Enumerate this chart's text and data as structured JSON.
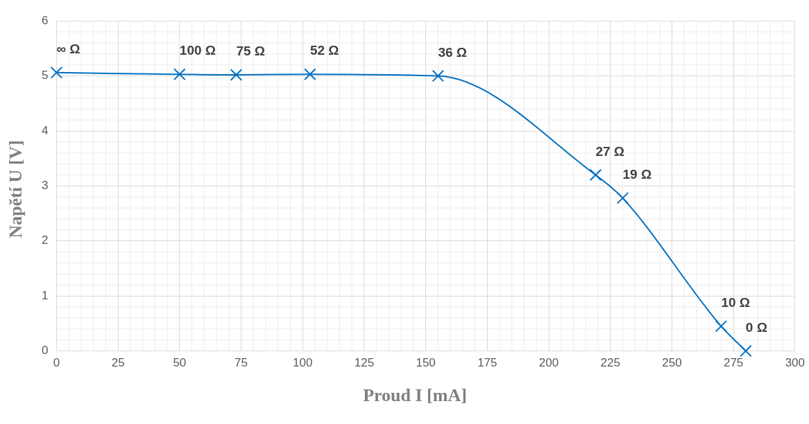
{
  "chart_data": {
    "type": "line",
    "xlabel": "Proud I [mA]",
    "ylabel": "Napětí U [V]",
    "x": [
      0,
      50,
      73,
      103,
      155,
      219,
      230,
      270,
      280
    ],
    "series": [
      {
        "color": "#0070c0",
        "values": [
          5.06,
          5.03,
          5.02,
          5.03,
          5.0,
          3.2,
          2.78,
          0.45,
          0
        ]
      }
    ],
    "xlim": [
      0,
      300
    ],
    "xticks": [
      0,
      25,
      50,
      75,
      100,
      125,
      150,
      175,
      200,
      225,
      250,
      275,
      300
    ],
    "ylim": [
      0,
      6
    ],
    "yticks": [
      0,
      1,
      2,
      3,
      4,
      5,
      6
    ],
    "grid": true,
    "legend": false,
    "marker": "cross",
    "line_style": "solid",
    "annotations": [
      {
        "text": "∞ Ω",
        "x": 0,
        "y": 5.06
      },
      {
        "text": "100 Ω",
        "x": 50,
        "y": 5.03
      },
      {
        "text": "75 Ω",
        "x": 73,
        "y": 5.02
      },
      {
        "text": "52 Ω",
        "x": 103,
        "y": 5.03
      },
      {
        "text": "36 Ω",
        "x": 155,
        "y": 5.0
      },
      {
        "text": "27 Ω",
        "x": 219,
        "y": 3.2
      },
      {
        "text": "19 Ω",
        "x": 230,
        "y": 2.78
      },
      {
        "text": "10 Ω",
        "x": 270,
        "y": 0.45
      },
      {
        "text": "0 Ω",
        "x": 280,
        "y": 0
      }
    ]
  }
}
